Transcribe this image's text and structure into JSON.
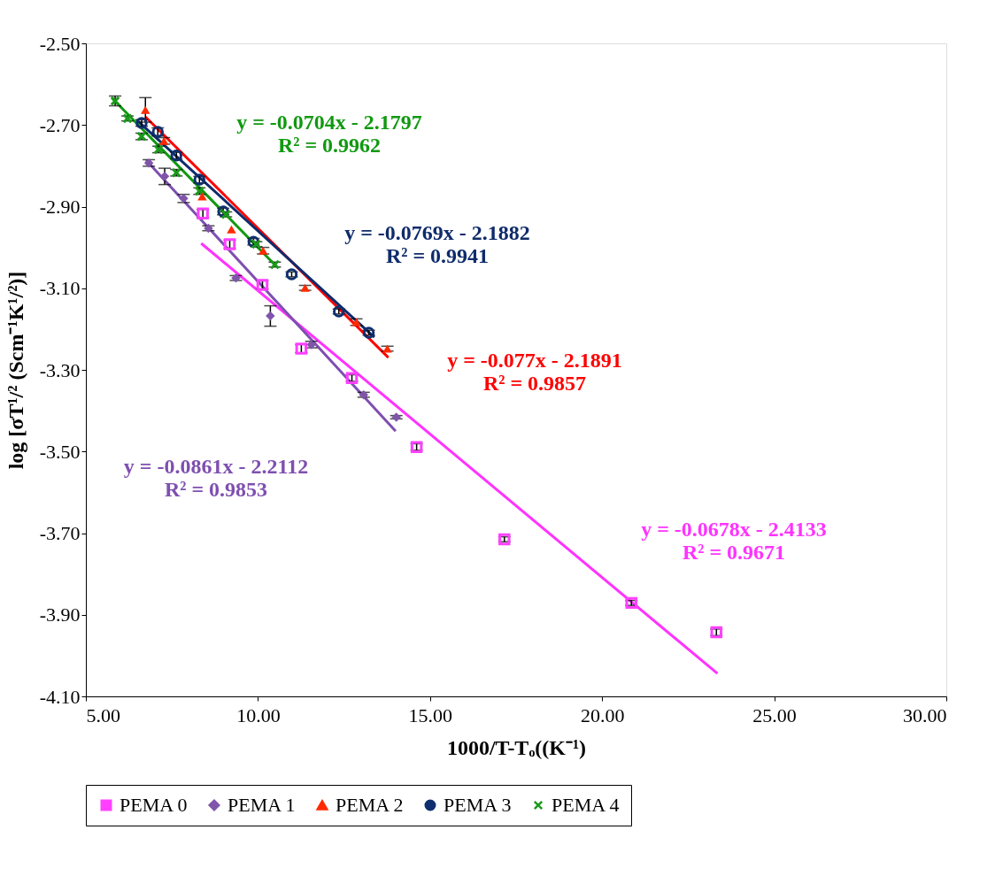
{
  "chart_data": {
    "type": "scatter",
    "xlabel": "1000/T-Tₒ((K⁻¹)",
    "ylabel": "log  [σT¹/² (Scm⁻¹K¹/²)]",
    "xlim": [
      5,
      30
    ],
    "xticks": [
      {
        "value": 5,
        "label": "5.00"
      },
      {
        "value": 10,
        "label": "10.00"
      },
      {
        "value": 15,
        "label": "15.00"
      },
      {
        "value": 20,
        "label": "20.00"
      },
      {
        "value": 25,
        "label": "25.00"
      },
      {
        "value": 30,
        "label": "30.00"
      }
    ],
    "ylim": [
      -4.1,
      -2.5
    ],
    "yticks": [
      {
        "value": -2.5,
        "label": "-2.50"
      },
      {
        "value": -2.7,
        "label": "-2.70"
      },
      {
        "value": -2.9,
        "label": "-2.90"
      },
      {
        "value": -3.1,
        "label": "-3.10"
      },
      {
        "value": -3.3,
        "label": "-3.30"
      },
      {
        "value": -3.5,
        "label": "-3.50"
      },
      {
        "value": -3.7,
        "label": "-3.70"
      },
      {
        "value": -3.9,
        "label": "-3.90"
      },
      {
        "value": -4.1,
        "label": "-4.10"
      }
    ],
    "grid": false,
    "legend": "bottom",
    "series": [
      {
        "name": "PEMA 0",
        "color": "#ff40ff",
        "marker": "square",
        "x": [
          8.4,
          9.18,
          10.13,
          11.26,
          12.73,
          14.61,
          17.16,
          20.85,
          23.32
        ],
        "values": [
          -2.917,
          -2.992,
          -3.092,
          -3.248,
          -3.32,
          -3.489,
          -3.715,
          -3.871,
          -3.943
        ],
        "errors": [
          0.01,
          0.01,
          0.01,
          0.01,
          0.008,
          0.008,
          0.006,
          0.006,
          0.008
        ]
      },
      {
        "name": "PEMA 1",
        "color": "#7f55aa",
        "marker": "diamond",
        "x": [
          6.83,
          7.29,
          7.84,
          8.56,
          9.36,
          10.36,
          11.55,
          13.07,
          14.02
        ],
        "values": [
          -2.793,
          -2.826,
          -2.88,
          -2.953,
          -3.075,
          -3.168,
          -3.238,
          -3.361,
          -3.416
        ],
        "errors": [
          0.008,
          0.02,
          0.01,
          0.006,
          0.006,
          0.025,
          0.008,
          0.006,
          0.004
        ]
      },
      {
        "name": "PEMA 2",
        "color": "#ff2a00",
        "marker": "triangle",
        "x": [
          6.73,
          7.27,
          8.38,
          9.23,
          10.15,
          11.37,
          12.86,
          13.76
        ],
        "values": [
          -2.663,
          -2.739,
          -2.875,
          -2.956,
          -3.008,
          -3.099,
          -3.183,
          -3.248
        ],
        "errors": [
          0.03,
          0.008,
          null,
          null,
          0.008,
          0.006,
          0.008,
          0.006
        ]
      },
      {
        "name": "PEMA 3",
        "color": "#0f2f6f",
        "marker": "circle",
        "x": [
          6.62,
          7.09,
          7.63,
          8.3,
          8.99,
          9.87,
          10.98,
          12.35,
          13.22
        ],
        "values": [
          -2.695,
          -2.717,
          -2.775,
          -2.834,
          -2.912,
          -2.986,
          -3.066,
          -3.157,
          -3.209
        ],
        "errors": [
          0.008,
          0.01,
          0.008,
          0.008,
          0.008,
          0.008,
          0.006,
          0.006,
          0.006
        ]
      },
      {
        "name": "PEMA 4",
        "color": "#1a9a1a",
        "marker": "cross",
        "x": [
          5.85,
          6.21,
          6.62,
          7.11,
          7.63,
          8.3,
          9.07,
          9.95,
          10.49
        ],
        "values": [
          -2.641,
          -2.684,
          -2.728,
          -2.76,
          -2.817,
          -2.862,
          -2.919,
          -2.992,
          -3.042
        ],
        "errors": [
          0.012,
          0.006,
          0.008,
          0.008,
          0.008,
          0.008,
          0.006,
          0.006,
          0.006
        ]
      },
      {
        "type": "line",
        "color": "#ff33ff",
        "x": [
          8.35,
          23.35
        ],
        "values": [
          -2.99,
          -4.044
        ]
      },
      {
        "type": "line",
        "color": "#7f4fb0",
        "x": [
          6.75,
          14.0
        ],
        "values": [
          -2.786,
          -3.45
        ]
      },
      {
        "type": "line",
        "color": "#ff0000",
        "x": [
          6.73,
          13.79
        ],
        "values": [
          -2.68,
          -3.27
        ]
      },
      {
        "type": "line",
        "color": "#0f2b6b",
        "x": [
          6.49,
          13.38
        ],
        "values": [
          -2.689,
          -3.22
        ]
      },
      {
        "type": "line",
        "color": "#119911",
        "x": [
          5.77,
          10.54
        ],
        "values": [
          -2.635,
          -3.047
        ]
      }
    ],
    "annotations": [
      "y = -0.0678x - 2.4133\nR² = 0.9671",
      "y = -0.0861x - 2.2112\nR² = 0.9853",
      "y = -0.077x - 2.1891\nR² = 0.9857",
      "y = -0.0769x - 2.1882\nR² = 0.9941",
      "y = -0.0704x - 2.1797\nR² = 0.9962"
    ]
  }
}
